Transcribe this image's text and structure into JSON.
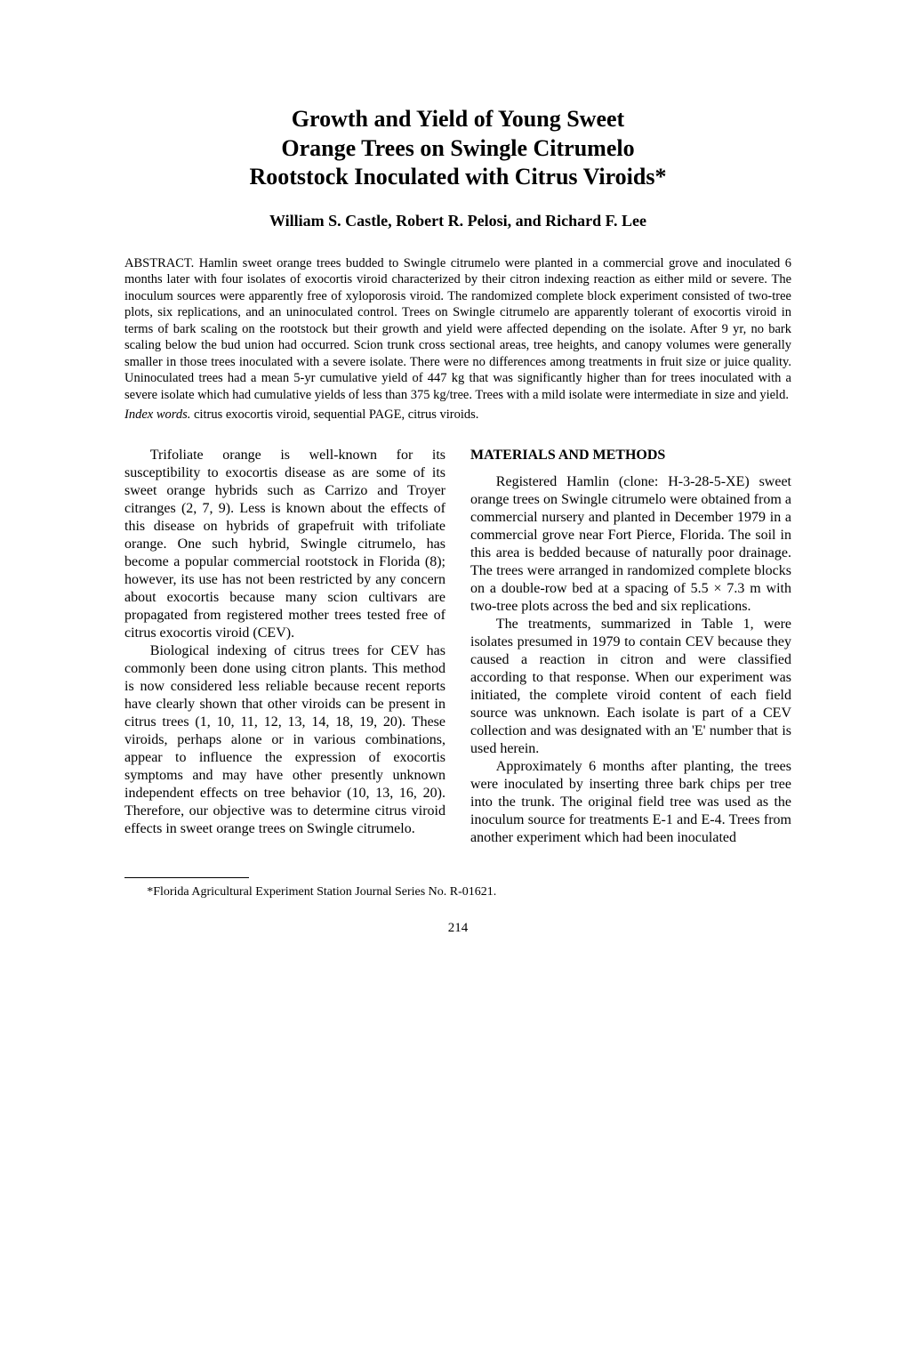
{
  "title_line1": "Growth and Yield of Young Sweet",
  "title_line2": "Orange Trees on Swingle Citrumelo",
  "title_line3": "Rootstock Inoculated with Citrus Viroids*",
  "authors": "William S. Castle, Robert R. Pelosi, and Richard F. Lee",
  "abstract": "ABSTRACT. Hamlin sweet orange trees budded to Swingle citrumelo were planted in a commercial grove and inoculated 6 months later with four isolates of exocortis viroid characterized by their citron indexing reaction as either mild or severe. The inoculum sources were apparently free of xyloporosis viroid. The randomized complete block experiment consisted of two-tree plots, six replications, and an uninoculated control. Trees on Swingle citrumelo are apparently tolerant of exocortis viroid in terms of bark scaling on the rootstock but their growth and yield were affected depending on the isolate. After 9 yr, no bark scaling below the bud union had occurred. Scion trunk cross sectional areas, tree heights, and canopy volumes were generally smaller in those trees inoculated with a severe isolate. There were no differences among treatments in fruit size or juice quality. Uninoculated trees had a mean 5-yr cumulative yield of 447 kg that was significantly higher than for trees inoculated with a severe isolate which had cumulative yields of less than 375 kg/tree. Trees with a mild isolate were intermediate in size and yield.",
  "index_words_label": "Index words.",
  "index_words_text": " citrus exocortis viroid, sequential PAGE, citrus viroids.",
  "body": {
    "p1": "Trifoliate orange is well-known for its susceptibility to exocortis disease as are some of its sweet orange hybrids such as Carrizo and Troyer citranges (2, 7, 9). Less is known about the effects of this disease on hybrids of grapefruit with trifoliate orange. One such hybrid, Swingle citrumelo, has become a popular commercial rootstock in Florida (8); however, its use has not been restricted by any concern about exocortis because many scion cultivars are propagated from registered mother trees tested free of citrus exocortis viroid (CEV).",
    "p2": "Biological indexing of citrus trees for CEV has commonly been done using citron plants. This method is now considered less reliable because recent reports have clearly shown that other viroids can be present in citrus trees (1, 10, 11, 12, 13, 14, 18, 19, 20). These viroids, perhaps alone or in various combinations, appear to influence the expression of exocortis symptoms and may have other presently unknown independent effects on tree behavior (10, 13, 16, 20). Therefore, our objective was to determine citrus viroid effects in sweet orange trees on Swingle citrumelo.",
    "mm_heading": "MATERIALS AND METHODS",
    "p3": "Registered Hamlin (clone: H-3-28-5-XE) sweet orange trees on Swingle citrumelo were obtained from a commercial nursery and planted in December 1979 in a commercial grove near Fort Pierce, Florida. The soil in this area is bedded because of naturally poor drainage. The trees were arranged in randomized complete blocks on a double-row bed at a spacing of 5.5 × 7.3 m with two-tree plots across the bed and six replications.",
    "p4": "The treatments, summarized in Table 1, were isolates presumed in 1979 to contain CEV because they caused a reaction in citron and were classified according to that response. When our experiment was initiated, the complete viroid content of each field source was unknown. Each isolate is part of a CEV collection and was designated with an 'E' number that is used herein.",
    "p5": "Approximately 6 months after planting, the trees were inoculated by inserting three bark chips per tree into the trunk. The original field tree was used as the inoculum source for treatments E-1 and E-4. Trees from another experiment which had been inoculated"
  },
  "footnote": "*Florida Agricultural Experiment Station Journal Series No. R-01621.",
  "page_number": "214"
}
